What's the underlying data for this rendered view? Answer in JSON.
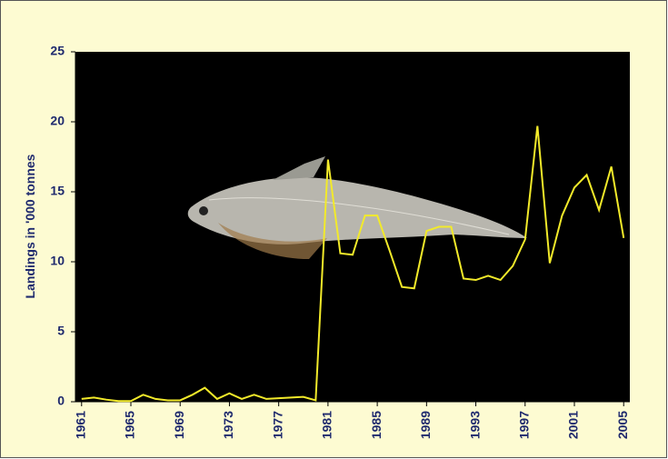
{
  "chart_data": {
    "type": "line",
    "y_label": "Landings in '000 tonnes",
    "x": [
      1961,
      1962,
      1963,
      1964,
      1965,
      1966,
      1967,
      1968,
      1969,
      1970,
      1971,
      1972,
      1973,
      1974,
      1975,
      1976,
      1977,
      1978,
      1979,
      1980,
      1981,
      1982,
      1983,
      1984,
      1985,
      1986,
      1987,
      1988,
      1989,
      1990,
      1991,
      1992,
      1993,
      1994,
      1995,
      1996,
      1997,
      1998,
      1999,
      2000,
      2001,
      2002,
      2003,
      2004,
      2005
    ],
    "values": [
      0.2,
      0.3,
      0.15,
      0.05,
      0.05,
      0.5,
      0.2,
      0.1,
      0.1,
      0.5,
      1.0,
      0.2,
      0.6,
      0.2,
      0.5,
      0.2,
      0.25,
      0.3,
      0.35,
      0.1,
      17.3,
      10.6,
      10.5,
      13.3,
      13.3,
      10.8,
      8.2,
      8.1,
      12.2,
      12.5,
      12.5,
      8.8,
      8.7,
      9.0,
      8.7,
      9.7,
      11.6,
      19.7,
      9.9,
      13.3,
      15.3,
      16.2,
      13.7,
      16.8,
      11.7
    ],
    "color": "#f2ea2a",
    "xlim": [
      1960.5,
      2005.5
    ],
    "xticks": [
      1961,
      1965,
      1969,
      1973,
      1977,
      1981,
      1985,
      1989,
      1993,
      1997,
      2001,
      2005
    ],
    "ylim": [
      0,
      25
    ],
    "yticks": [
      0,
      5,
      10,
      15,
      20,
      25
    ]
  }
}
